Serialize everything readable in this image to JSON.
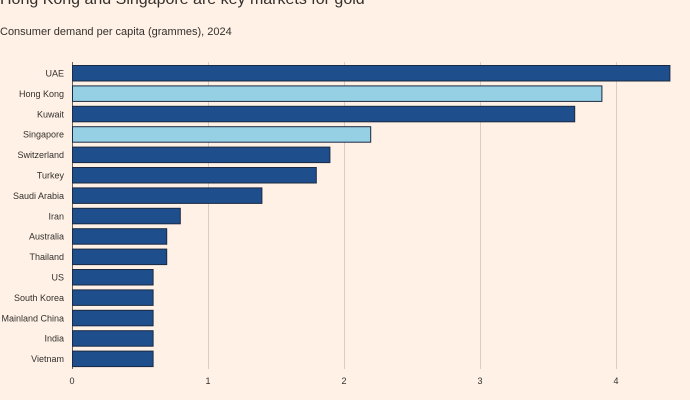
{
  "title": "Hong Kong and Singapore are key markets for gold",
  "subtitle": "Consumer demand per capita (grammes), 2024",
  "colors": {
    "default": "#1F4E8C",
    "highlight": "#96D0E5",
    "bar_stroke": "#1A2A44",
    "grid": "#D9CEC5",
    "background": "#FFF1E5"
  },
  "chart_data": {
    "type": "bar",
    "orientation": "horizontal",
    "categories": [
      "UAE",
      "Hong Kong",
      "Kuwait",
      "Singapore",
      "Switzerland",
      "Turkey",
      "Saudi Arabia",
      "Iran",
      "Australia",
      "Thailand",
      "US",
      "South Korea",
      "Mainland China",
      "India",
      "Vietnam"
    ],
    "values": [
      4.4,
      3.9,
      3.7,
      2.2,
      1.9,
      1.8,
      1.4,
      0.8,
      0.7,
      0.7,
      0.6,
      0.6,
      0.6,
      0.6,
      0.6
    ],
    "highlighted": [
      "Hong Kong",
      "Singapore"
    ],
    "xlim": [
      0,
      4.5
    ],
    "xticks": [
      0,
      1,
      2,
      3,
      4
    ],
    "xlabel": "",
    "ylabel": "",
    "grid": true,
    "legend": "none"
  }
}
